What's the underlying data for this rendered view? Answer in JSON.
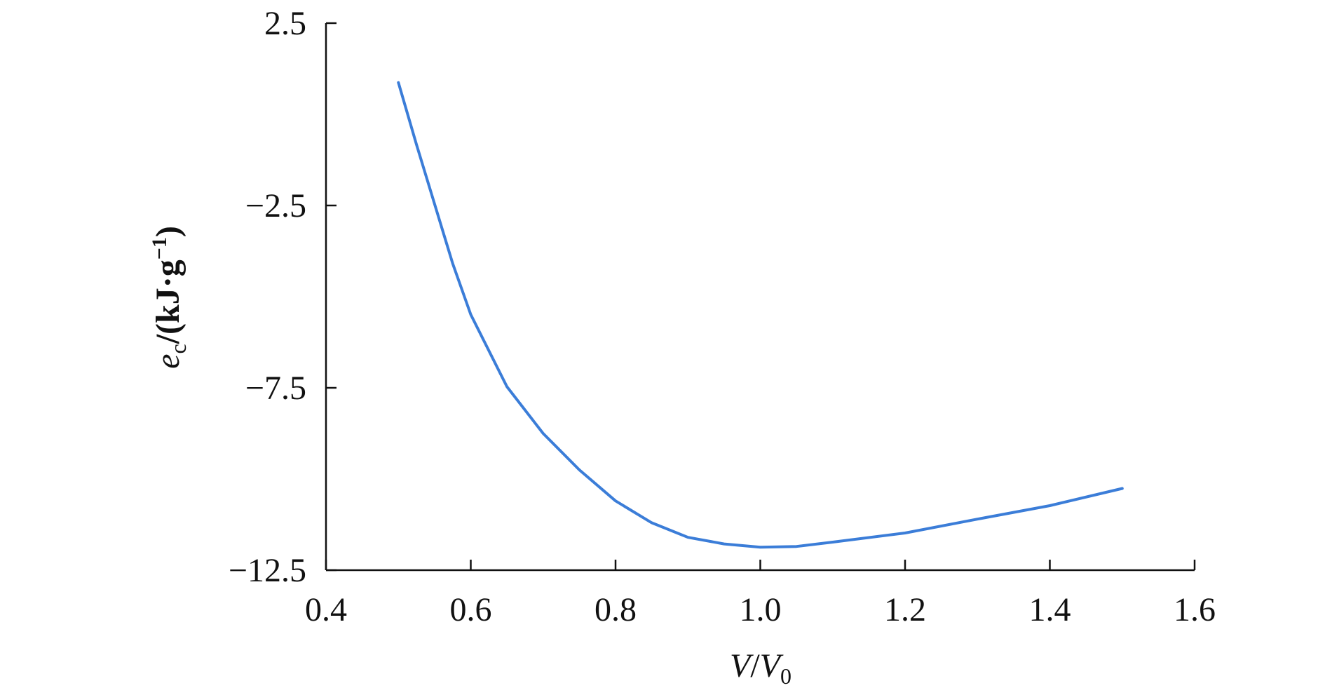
{
  "chart_data": {
    "type": "line",
    "x_label_parts": [
      "V",
      "/",
      "V",
      "0"
    ],
    "y_label_parts": [
      "e",
      "c",
      "/(kJ·g",
      "−1",
      ")"
    ],
    "x": [
      0.5,
      0.525,
      0.55,
      0.575,
      0.6,
      0.65,
      0.7,
      0.75,
      0.8,
      0.85,
      0.9,
      0.95,
      1.0,
      1.05,
      1.1,
      1.2,
      1.3,
      1.4,
      1.5
    ],
    "series": [
      {
        "color": "#3b7dd8",
        "values": [
          0.87,
          -0.83,
          -2.46,
          -4.09,
          -5.49,
          -7.47,
          -8.75,
          -9.75,
          -10.6,
          -11.2,
          -11.6,
          -11.78,
          -11.87,
          -11.85,
          -11.73,
          -11.48,
          -11.1,
          -10.73,
          -10.26
        ]
      }
    ],
    "xlim": [
      0.4,
      1.6
    ],
    "xticks": [
      0.4,
      0.6,
      0.8,
      {
        "value": 1,
        "label": "1.0"
      },
      1.2,
      1.4,
      1.6
    ],
    "ylim": [
      -12.5,
      2.5
    ],
    "yticks": [
      {
        "value": -12.5,
        "label": "−12.5"
      },
      {
        "value": -7.5,
        "label": "−7.5"
      },
      {
        "value": -2.5,
        "label": "−2.5"
      },
      2.5
    ]
  }
}
